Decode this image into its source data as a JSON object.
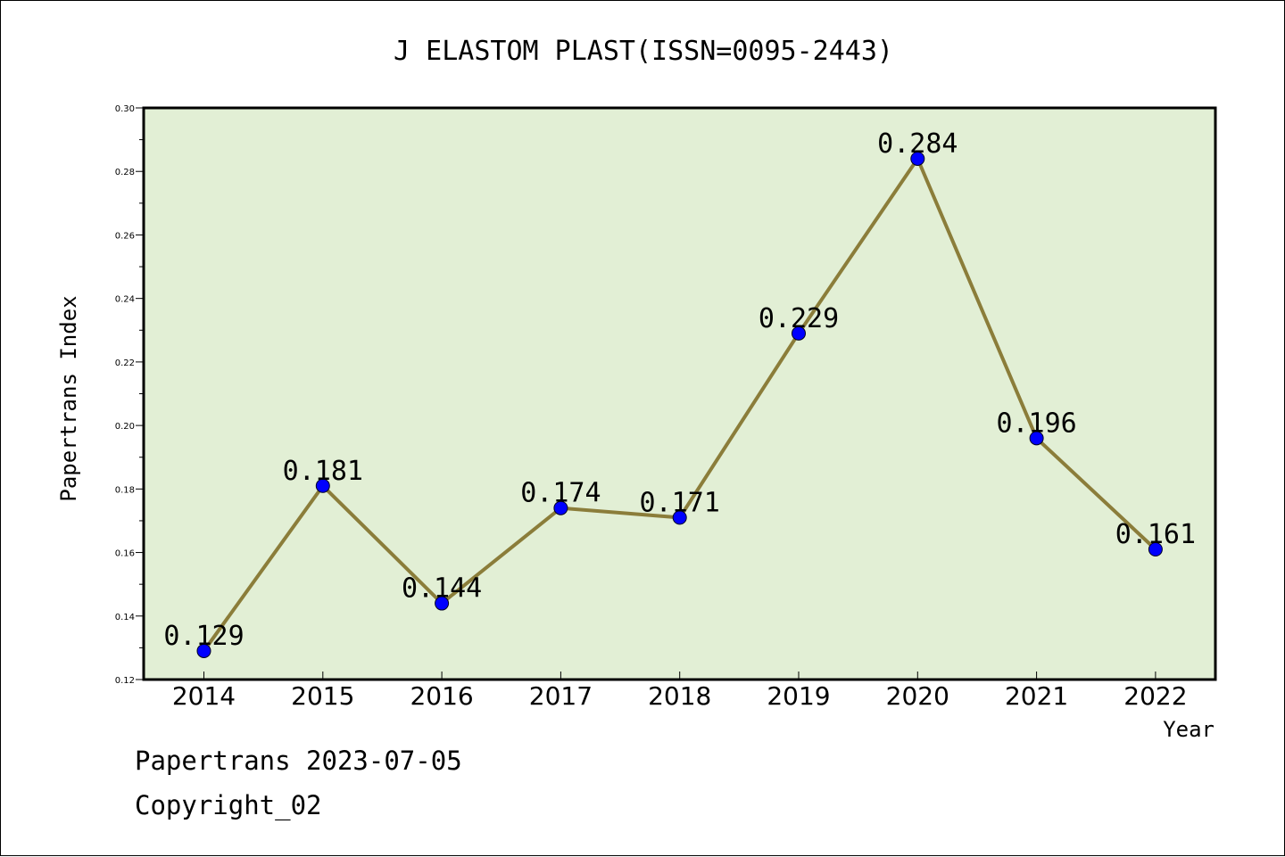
{
  "chart_data": {
    "type": "line",
    "title": "J ELASTOM PLAST(ISSN=0095-2443)",
    "xlabel": "Year",
    "ylabel": "Papertrans Index",
    "categories": [
      "2014",
      "2015",
      "2016",
      "2017",
      "2018",
      "2019",
      "2020",
      "2021",
      "2022"
    ],
    "series": [
      {
        "values": [
          0.129,
          0.181,
          0.144,
          0.174,
          0.171,
          0.229,
          0.284,
          0.196,
          0.161
        ],
        "labels": [
          "0.129",
          "0.181",
          "0.144",
          "0.174",
          "0.171",
          "0.229",
          "0.284",
          "0.196",
          "0.161"
        ]
      }
    ],
    "ylim": [
      0.12,
      0.3
    ],
    "yticks": [
      "0.12",
      "0.14",
      "0.16",
      "0.18",
      "0.20",
      "0.22",
      "0.24",
      "0.26",
      "0.28",
      "0.30"
    ],
    "grid": false,
    "colors": {
      "line": "#8b7d3a",
      "marker": "#0000ff",
      "plot_background": "#e2efd5"
    }
  },
  "footer": {
    "line1": "Papertrans 2023-07-05",
    "line2": "Copyright_02"
  }
}
